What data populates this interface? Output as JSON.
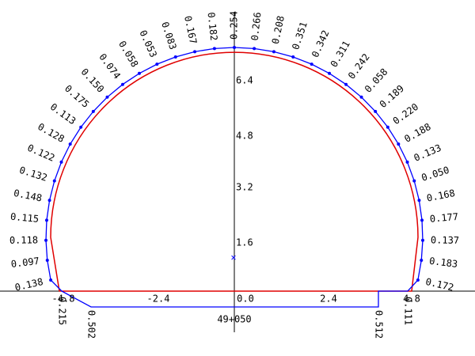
{
  "section_labels": [
    "0.138",
    "0.097",
    "0.118",
    "0.115",
    "0.148",
    "0.132",
    "0.122",
    "0.128",
    "0.113",
    "0.175",
    "0.150",
    "0.074",
    "0.058",
    "0.053",
    "0.083",
    "0.167",
    "0.182",
    "0.254",
    "0.266",
    "0.208",
    "0.351",
    "0.342",
    "0.311",
    "0.242",
    "0.058",
    "0.189",
    "0.220",
    "0.188",
    "0.133",
    "0.050",
    "0.168",
    "0.177",
    "0.137",
    "0.183",
    "0.172"
  ],
  "bottom_labels": [
    "0.215",
    "0.502",
    "0.512",
    "0.111"
  ],
  "x_axis_labels": [
    "-4.8",
    "-2.4",
    "0.0",
    "2.4",
    "4.8"
  ],
  "y_axis_labels": [
    "1.6",
    "3.2",
    "4.8",
    "6.4"
  ],
  "station": "49+050"
}
